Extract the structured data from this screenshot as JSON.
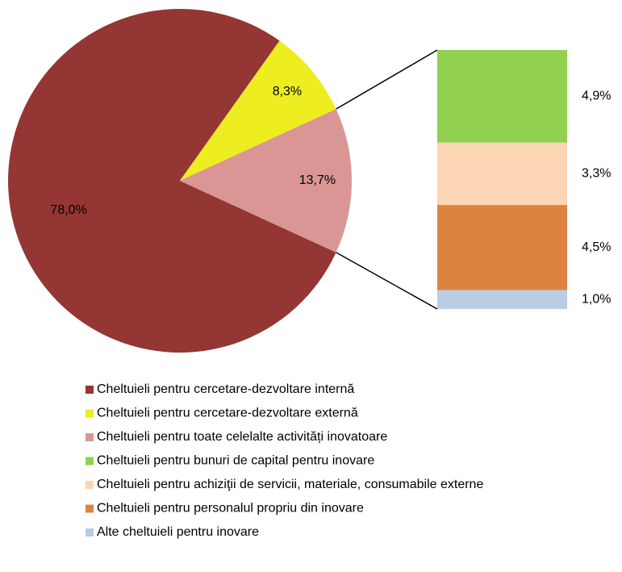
{
  "chart_data": {
    "type": "pie",
    "categories": [
      "Cheltuieli pentru cercetare-dezvoltare internă",
      "Cheltuieli pentru cercetare-dezvoltare externă",
      "Cheltuieli pentru toate celelalte activități inovatoare"
    ],
    "values": [
      78.0,
      8.3,
      13.7
    ],
    "value_labels": [
      "78,0%",
      "8,3%",
      "13,7%"
    ],
    "colors": [
      "#943634",
      "#eded1f",
      "#d99694"
    ],
    "breakdown": {
      "categories": [
        "Cheltuieli pentru bunuri de capital pentru inovare",
        "Cheltuieli pentru achiziţii de servicii, materiale, consumabile externe",
        "Cheltuieli pentru personalul propriu din inovare",
        "Alte cheltuieli pentru inovare"
      ],
      "values": [
        4.9,
        3.3,
        4.5,
        1.0
      ],
      "value_labels": [
        "4,9%",
        "3,3%",
        "4,5%",
        "1,0%"
      ],
      "colors": [
        "#92d050",
        "#fcd5b5",
        "#dc843f",
        "#b9cde5"
      ]
    }
  }
}
